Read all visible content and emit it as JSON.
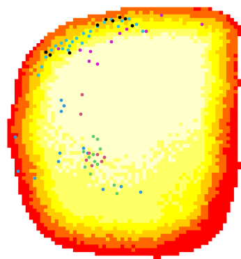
{
  "chart_data": {
    "type": "heatmap",
    "title": "",
    "xlabel": "",
    "ylabel": "",
    "grid": false,
    "legend": "none",
    "colormap": [
      "#ff0000",
      "#ff6600",
      "#ffcc00",
      "#ffff00",
      "#ffff66",
      "#ffffcc"
    ],
    "background_grid": {
      "cols": 66,
      "rows": 72,
      "density_peak_cell": [
        36,
        17
      ],
      "note_region": "blob"
    },
    "overlay_series": [
      {
        "color": "#33c3d9",
        "points": [
          [
            80,
            66
          ],
          [
            88,
            62
          ],
          [
            95,
            58
          ],
          [
            104,
            60
          ],
          [
            110,
            55
          ],
          [
            120,
            48
          ],
          [
            130,
            45
          ],
          [
            140,
            38
          ],
          [
            150,
            32
          ],
          [
            160,
            28
          ],
          [
            175,
            30
          ],
          [
            185,
            27
          ],
          [
            196,
            35
          ],
          [
            74,
            72
          ],
          [
            66,
            82
          ],
          [
            60,
            96
          ],
          [
            55,
            108
          ],
          [
            98,
            72
          ],
          [
            118,
            62
          ],
          [
            128,
            52
          ],
          [
            90,
            70
          ],
          [
            100,
            66
          ],
          [
            170,
            38
          ],
          [
            205,
            45
          ]
        ]
      },
      {
        "color": "#000000",
        "points": [
          [
            66,
            75
          ],
          [
            72,
            79
          ],
          [
            100,
            76
          ],
          [
            140,
            36
          ],
          [
            152,
            28
          ],
          [
            162,
            30
          ],
          [
            172,
            25
          ],
          [
            180,
            27
          ],
          [
            190,
            37
          ]
        ]
      },
      {
        "color": "#cc22cc",
        "points": [
          [
            84,
            70
          ],
          [
            115,
            72
          ],
          [
            128,
            88
          ],
          [
            140,
            92
          ],
          [
            160,
            60
          ],
          [
            182,
            42
          ],
          [
            210,
            45
          ],
          [
            232,
            22
          ],
          [
            290,
            35
          ],
          [
            130,
            74
          ],
          [
            172,
            48
          ]
        ]
      },
      {
        "color": "#3399dd",
        "points": [
          [
            88,
            144
          ],
          [
            92,
            152
          ],
          [
            88,
            160
          ],
          [
            22,
            197
          ],
          [
            86,
            220
          ],
          [
            84,
            232
          ],
          [
            26,
            246
          ],
          [
            50,
            256
          ],
          [
            120,
            213
          ],
          [
            126,
            220
          ],
          [
            148,
            272
          ],
          [
            202,
            276
          ],
          [
            174,
            268
          ]
        ]
      },
      {
        "color": "#cc5577",
        "points": [
          [
            116,
            164
          ],
          [
            140,
            222
          ],
          [
            150,
            226
          ],
          [
            146,
            232
          ],
          [
            132,
            238
          ],
          [
            124,
            230
          ],
          [
            128,
            220
          ],
          [
            118,
            136
          ]
        ]
      },
      {
        "color": "#66cc66",
        "points": [
          [
            120,
            218
          ],
          [
            128,
            226
          ],
          [
            136,
            232
          ],
          [
            140,
            236
          ],
          [
            134,
            222
          ],
          [
            144,
            214
          ],
          [
            122,
            240
          ],
          [
            134,
            196
          ],
          [
            140,
            200
          ],
          [
            168,
            278
          ],
          [
            130,
            250
          ],
          [
            164,
            266
          ]
        ]
      }
    ]
  }
}
